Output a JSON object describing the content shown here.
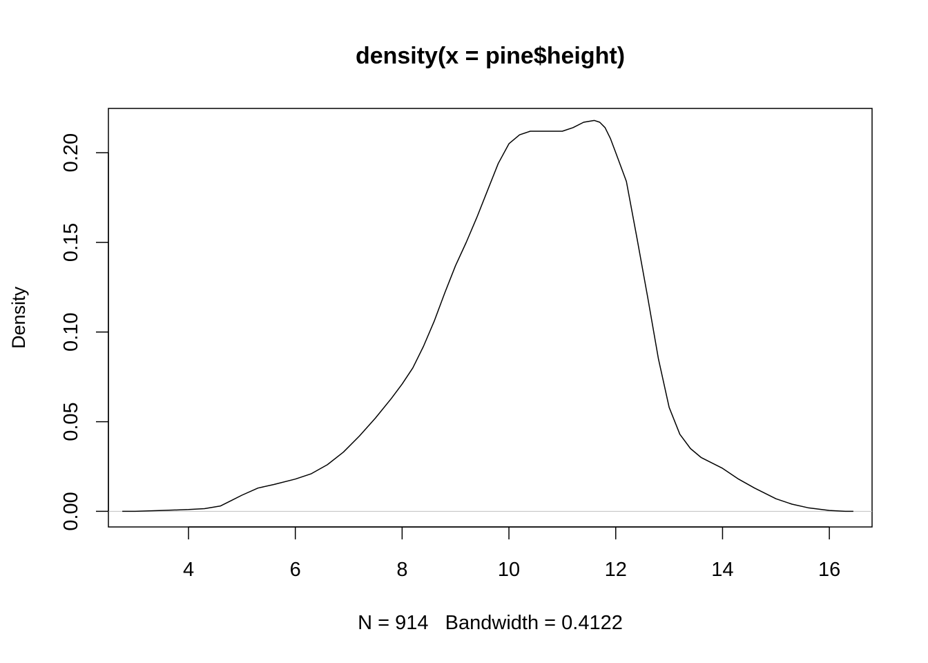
{
  "chart_data": {
    "type": "line",
    "title": "density(x = pine$height)",
    "xlabel": "N = 914   Bandwidth = 0.4122",
    "ylabel": "Density",
    "xlim": [
      2.5,
      16.8
    ],
    "ylim": [
      -0.0087,
      0.2247
    ],
    "xticks": [
      4,
      6,
      8,
      10,
      12,
      14,
      16
    ],
    "xtick_labels": [
      "4",
      "6",
      "8",
      "10",
      "12",
      "14",
      "16"
    ],
    "yticks": [
      0.0,
      0.05,
      0.1,
      0.15,
      0.2
    ],
    "ytick_labels": [
      "0.00",
      "0.05",
      "0.10",
      "0.15",
      "0.20"
    ],
    "baseline": 0,
    "baseline_color": "#bebebe",
    "line_color": "#000000",
    "grid": false,
    "legend": "none",
    "series": [
      {
        "x": [
          2.76,
          3.0,
          3.5,
          4.0,
          4.3,
          4.6,
          4.8,
          5.0,
          5.3,
          5.6,
          6.0,
          6.3,
          6.6,
          6.9,
          7.2,
          7.5,
          7.8,
          8.0,
          8.2,
          8.4,
          8.6,
          8.8,
          9.0,
          9.2,
          9.4,
          9.6,
          9.8,
          10.0,
          10.2,
          10.4,
          10.6,
          10.8,
          11.0,
          11.2,
          11.4,
          11.6,
          11.7,
          11.8,
          11.9,
          12.0,
          12.2,
          12.4,
          12.6,
          12.8,
          13.0,
          13.2,
          13.4,
          13.6,
          13.8,
          14.0,
          14.3,
          14.6,
          15.0,
          15.3,
          15.6,
          16.0,
          16.3,
          16.45
        ],
        "y": [
          0.0,
          0.0,
          0.0005,
          0.001,
          0.0015,
          0.003,
          0.006,
          0.009,
          0.013,
          0.015,
          0.018,
          0.021,
          0.026,
          0.033,
          0.042,
          0.052,
          0.063,
          0.071,
          0.08,
          0.092,
          0.106,
          0.122,
          0.137,
          0.15,
          0.164,
          0.179,
          0.194,
          0.205,
          0.21,
          0.212,
          0.212,
          0.212,
          0.212,
          0.214,
          0.217,
          0.218,
          0.217,
          0.214,
          0.208,
          0.2,
          0.184,
          0.152,
          0.119,
          0.085,
          0.058,
          0.043,
          0.035,
          0.03,
          0.027,
          0.024,
          0.018,
          0.013,
          0.007,
          0.004,
          0.002,
          0.0005,
          0.0,
          0.0
        ]
      }
    ]
  }
}
